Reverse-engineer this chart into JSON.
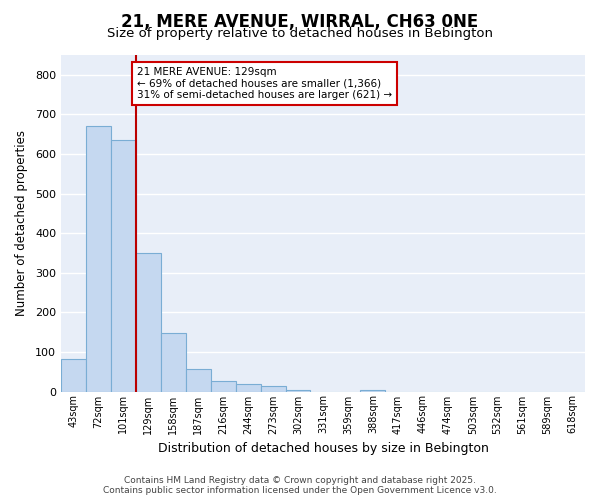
{
  "title": "21, MERE AVENUE, WIRRAL, CH63 0NE",
  "subtitle": "Size of property relative to detached houses in Bebington",
  "xlabel": "Distribution of detached houses by size in Bebington",
  "ylabel": "Number of detached properties",
  "categories": [
    "43sqm",
    "72sqm",
    "101sqm",
    "129sqm",
    "158sqm",
    "187sqm",
    "216sqm",
    "244sqm",
    "273sqm",
    "302sqm",
    "331sqm",
    "359sqm",
    "388sqm",
    "417sqm",
    "446sqm",
    "474sqm",
    "503sqm",
    "532sqm",
    "561sqm",
    "589sqm",
    "618sqm"
  ],
  "values": [
    83,
    670,
    635,
    350,
    148,
    57,
    27,
    18,
    14,
    5,
    0,
    0,
    5,
    0,
    0,
    0,
    0,
    0,
    0,
    0,
    0
  ],
  "bar_color": "#c5d8f0",
  "bar_edge_color": "#7aadd4",
  "property_line_index": 3,
  "property_line_color": "#bb0000",
  "annotation_line1": "21 MERE AVENUE: 129sqm",
  "annotation_line2": "← 69% of detached houses are smaller (1,366)",
  "annotation_line3": "31% of semi-detached houses are larger (621) →",
  "annotation_box_color": "#cc0000",
  "ylim": [
    0,
    850
  ],
  "yticks": [
    0,
    100,
    200,
    300,
    400,
    500,
    600,
    700,
    800
  ],
  "plot_bg_color": "#e8eef8",
  "grid_color": "#ffffff",
  "fig_bg_color": "#ffffff",
  "footer_line1": "Contains HM Land Registry data © Crown copyright and database right 2025.",
  "footer_line2": "Contains public sector information licensed under the Open Government Licence v3.0."
}
